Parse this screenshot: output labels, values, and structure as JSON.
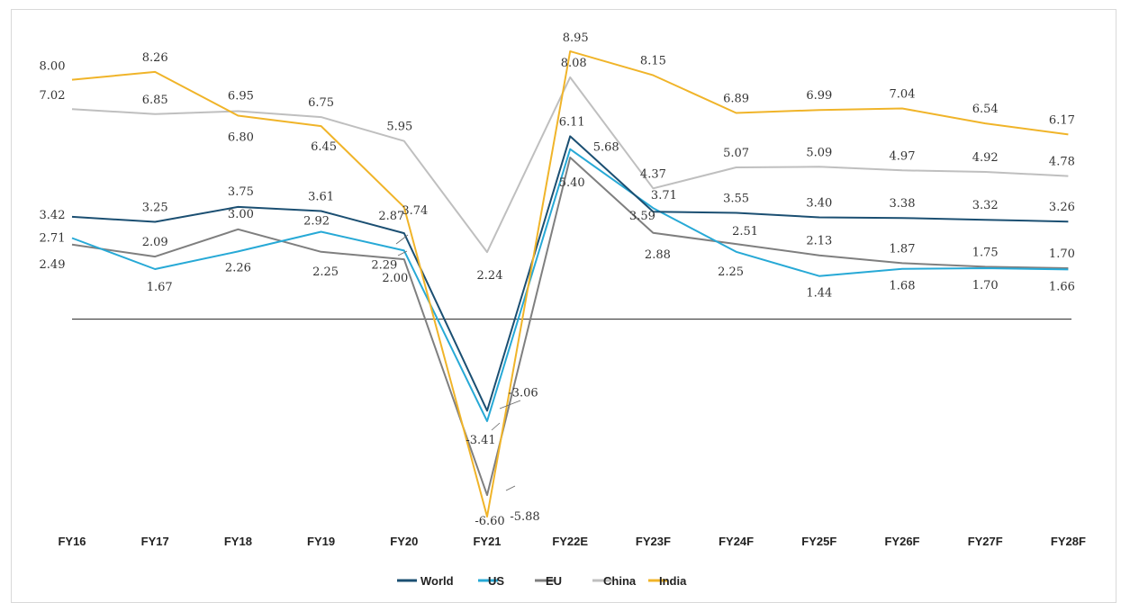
{
  "chart_data": {
    "type": "line",
    "categories": [
      "FY16",
      "FY17",
      "FY18",
      "FY19",
      "FY20",
      "FY21",
      "FY22E",
      "FY23F",
      "FY24F",
      "FY25F",
      "FY26F",
      "FY27F",
      "FY28F"
    ],
    "series": [
      {
        "name": "World",
        "color": "#1b4f72",
        "values": [
          3.42,
          3.25,
          3.75,
          3.61,
          2.87,
          -3.06,
          6.11,
          3.59,
          3.55,
          3.4,
          3.38,
          3.32,
          3.26
        ]
      },
      {
        "name": "US",
        "color": "#27a9d6",
        "values": [
          2.71,
          1.67,
          2.26,
          2.92,
          2.29,
          -3.41,
          5.68,
          3.71,
          2.25,
          1.44,
          1.68,
          1.7,
          1.66
        ]
      },
      {
        "name": "EU",
        "color": "#7f7f7f",
        "values": [
          2.49,
          2.09,
          3.0,
          2.25,
          2.0,
          -5.88,
          5.4,
          2.88,
          2.51,
          2.13,
          1.87,
          1.75,
          1.7
        ]
      },
      {
        "name": "China",
        "color": "#bfbfbf",
        "values": [
          7.02,
          6.85,
          6.95,
          6.75,
          5.95,
          2.24,
          8.08,
          4.37,
          5.07,
          5.09,
          4.97,
          4.92,
          4.78
        ]
      },
      {
        "name": "India",
        "color": "#f0b429",
        "values": [
          8.0,
          8.26,
          6.8,
          6.45,
          3.74,
          -6.6,
          8.95,
          8.15,
          6.89,
          6.99,
          7.04,
          6.54,
          6.17
        ]
      }
    ],
    "data_label_text": {
      "World": [
        "3.42",
        "3.25",
        "3.75",
        "3.61",
        "2.87",
        "-3.06",
        "6.11",
        "3.59",
        "3.55",
        "3.40",
        "3.38",
        "3.32",
        "3.26"
      ],
      "US": [
        "2.71",
        "1.67",
        "2.26",
        "2.92",
        "2.29",
        "-3.41",
        "5.68",
        "3.71",
        "2.25",
        "1.44",
        "1.68",
        "1.70",
        "1.66"
      ],
      "EU": [
        "2.49",
        "2.09",
        "3.00",
        "2.25",
        "2.00",
        "-5.88",
        "5.40",
        "2.88",
        "2.51",
        "2.13",
        "1.87",
        "1.75",
        "1.70"
      ],
      "China": [
        "7.02",
        "6.85",
        "6.95",
        "6.75",
        "5.95",
        "2.24",
        "8.08",
        "4.37",
        "5.07",
        "5.09",
        "4.97",
        "4.92",
        "4.78"
      ],
      "India": [
        "8.00",
        "8.26",
        "6.80",
        "6.45",
        "3.74",
        "-6.60",
        "8.95",
        "8.15",
        "6.89",
        "6.99",
        "7.04",
        "6.54",
        "6.17"
      ]
    },
    "ylim": [
      -6.6,
      8.95
    ],
    "zero_line": true,
    "grid": false,
    "legend_position": "bottom-center",
    "title": "",
    "xlabel": "",
    "ylabel": ""
  }
}
